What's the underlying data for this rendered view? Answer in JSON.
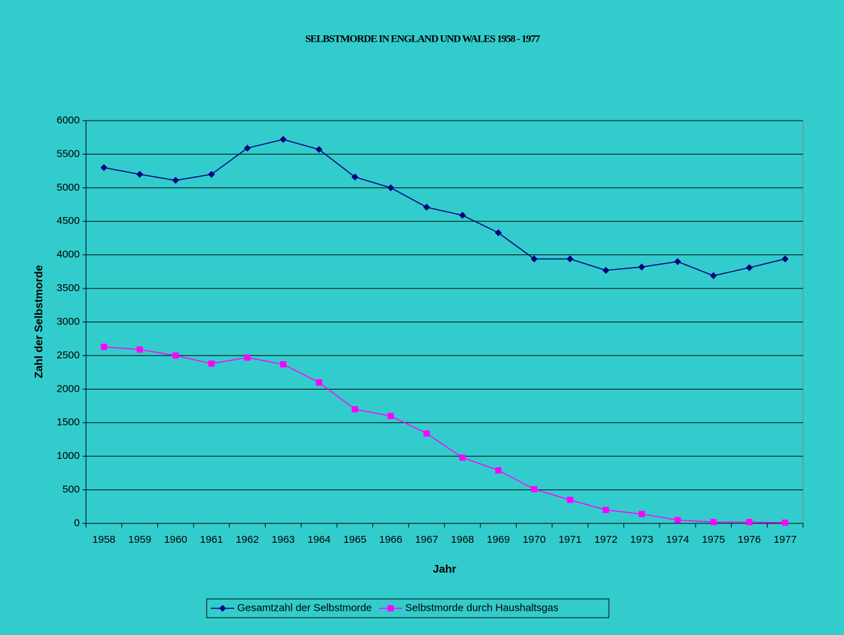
{
  "chart_data": {
    "type": "line",
    "title": "SELBSTMORDE IN ENGLAND UND WALES 1958 - 1977",
    "x_label": "Jahr",
    "y_label": "Zahl der Selbstmorde",
    "categories": [
      "1958",
      "1959",
      "1960",
      "1961",
      "1962",
      "1963",
      "1964",
      "1965",
      "1966",
      "1967",
      "1968",
      "1969",
      "1970",
      "1971",
      "1972",
      "1973",
      "1974",
      "1975",
      "1976",
      "1977"
    ],
    "series": [
      {
        "name": "Gesamtzahl der Selbstmorde",
        "color": "#000080",
        "marker": "diamond",
        "values": [
          5300,
          5200,
          5110,
          5200,
          5590,
          5720,
          5570,
          5160,
          5000,
          4710,
          4590,
          4330,
          3940,
          3940,
          3770,
          3820,
          3900,
          3690,
          3810,
          3940
        ]
      },
      {
        "name": "Selbstmorde durch Haushaltsgas",
        "color": "#ff00ff",
        "marker": "square",
        "values": [
          2630,
          2590,
          2500,
          2380,
          2470,
          2370,
          2100,
          1700,
          1600,
          1340,
          980,
          790,
          510,
          350,
          200,
          140,
          50,
          20,
          20,
          10
        ]
      }
    ],
    "ylim": [
      0,
      6000
    ],
    "yticks": [
      0,
      500,
      1000,
      1500,
      2000,
      2500,
      3000,
      3500,
      4000,
      4500,
      5000,
      5500,
      6000
    ],
    "grid": true,
    "legend": "bottom"
  }
}
